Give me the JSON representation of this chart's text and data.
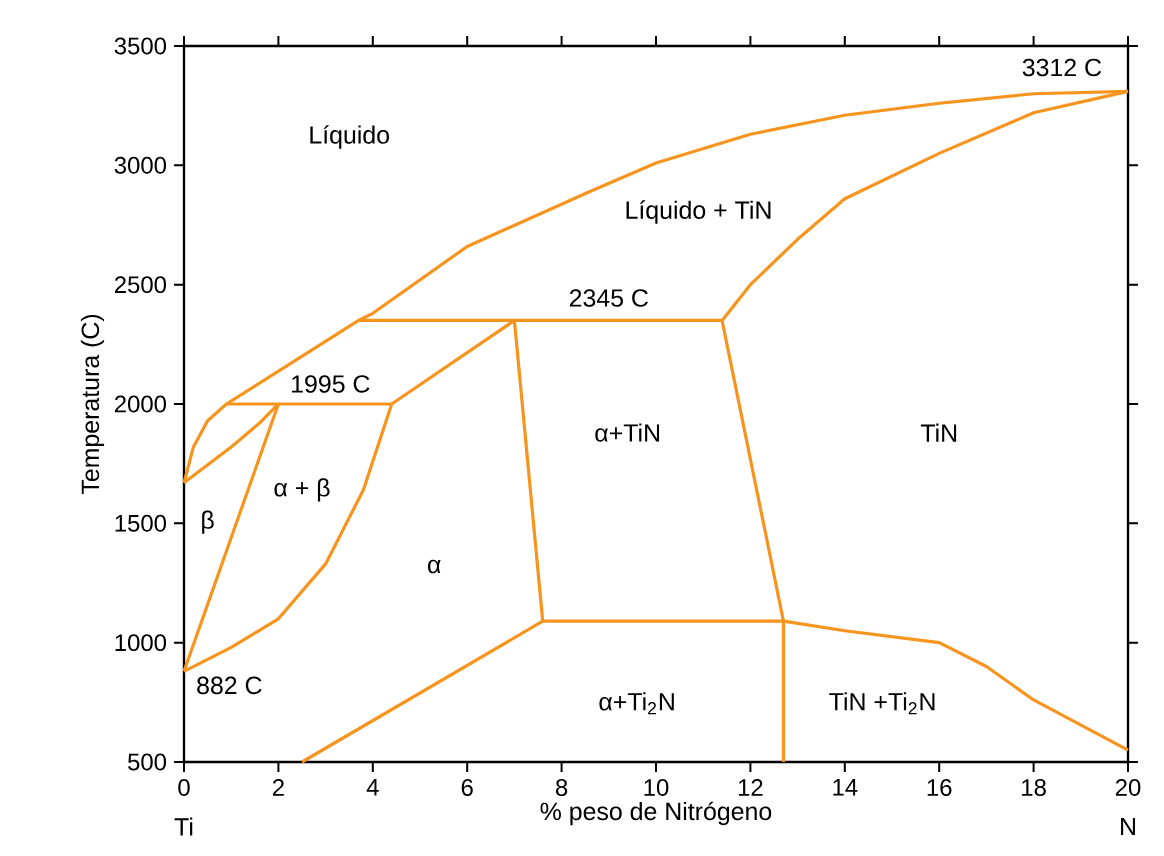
{
  "chart_data": {
    "type": "line",
    "xlabel": "% peso de Nitrógeno",
    "ylabel": "Temperatura (C)",
    "xlim": [
      0,
      20
    ],
    "ylim": [
      500,
      3500
    ],
    "xticks": [
      0,
      2,
      4,
      6,
      8,
      10,
      12,
      14,
      16,
      18,
      20
    ],
    "yticks": [
      500,
      1000,
      1500,
      2000,
      2500,
      3000,
      3500
    ],
    "grid": false,
    "marker": "none",
    "line_style": "solid",
    "series": [
      {
        "color": "#f7941d",
        "x": [
          0,
          0.2,
          0.5,
          0.9,
          3.7,
          4,
          6,
          8.6,
          10,
          12,
          14,
          16,
          18,
          20
        ],
        "values": [
          1670,
          1820,
          1930,
          2000,
          2350,
          2380,
          2660,
          2890,
          3010,
          3130,
          3210,
          3260,
          3300,
          3310
        ]
      },
      {
        "color": "#f7941d",
        "x": [
          0,
          1,
          1.6,
          2
        ],
        "values": [
          1670,
          1820,
          1920,
          2000
        ]
      },
      {
        "color": "#f7941d",
        "x": [
          0.9,
          4.4
        ],
        "values": [
          2000,
          2000
        ]
      },
      {
        "color": "#f7941d",
        "x": [
          0,
          2
        ],
        "values": [
          880,
          2000
        ]
      },
      {
        "color": "#f7941d",
        "x": [
          0,
          1,
          2,
          3,
          3.8,
          4.4
        ],
        "values": [
          880,
          980,
          1100,
          1330,
          1640,
          2000
        ]
      },
      {
        "color": "#f7941d",
        "x": [
          4.4,
          7
        ],
        "values": [
          2000,
          2350
        ]
      },
      {
        "color": "#f7941d",
        "x": [
          3.7,
          11.4
        ],
        "values": [
          2350,
          2350
        ]
      },
      {
        "color": "#f7941d",
        "x": [
          7,
          7.6
        ],
        "values": [
          2350,
          1090
        ]
      },
      {
        "color": "#f7941d",
        "x": [
          11.4,
          12.7,
          12.7
        ],
        "values": [
          2350,
          1090,
          500
        ]
      },
      {
        "color": "#f7941d",
        "x": [
          11.4,
          12,
          13,
          14,
          16,
          18,
          20
        ],
        "values": [
          2350,
          2500,
          2690,
          2860,
          3050,
          3220,
          3310
        ]
      },
      {
        "color": "#f7941d",
        "x": [
          7.6,
          12.7,
          14,
          16,
          17,
          18,
          20
        ],
        "values": [
          1090,
          1090,
          1050,
          1000,
          900,
          760,
          550
        ]
      },
      {
        "color": "#f7941d",
        "x": [
          2.5,
          7.6
        ],
        "values": [
          500,
          1090
        ]
      }
    ],
    "annotations": [
      "Líquido",
      "Líquido + TiN",
      "3312 C",
      "2345 C",
      "1995 C",
      "α + β",
      "β",
      "α",
      "α+TiN",
      "TiN",
      "882 C",
      "α+Ti$_{2}$N",
      "TiN +Ti$_{2}$N",
      "Ti",
      "N"
    ]
  }
}
